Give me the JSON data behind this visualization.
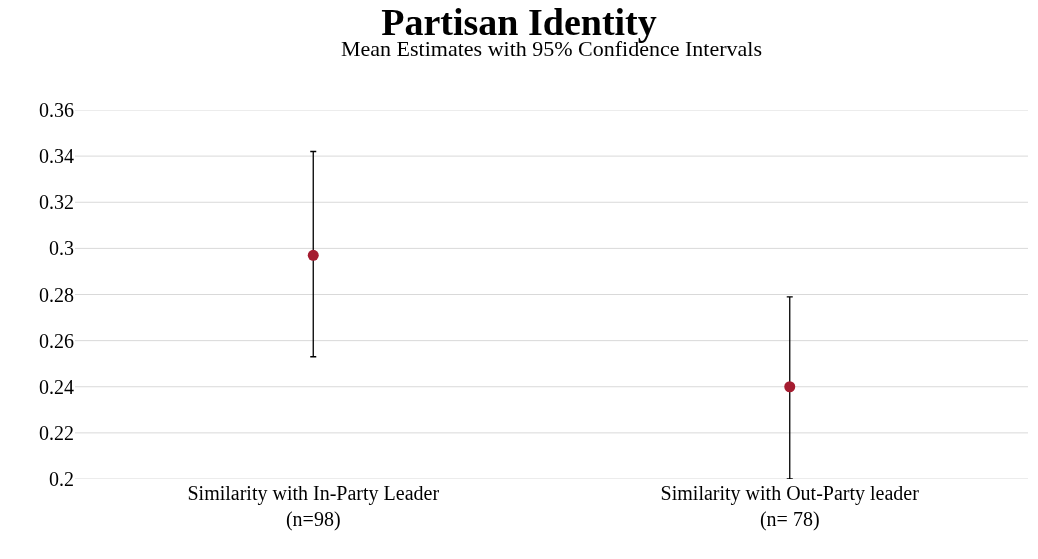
{
  "chart_data": {
    "type": "scatter",
    "title": "Partisan Identity",
    "subtitle": "Mean Estimates with 95% Confidence Intervals",
    "categories": [
      "Similarity with In-Party Leader\n(n=98)",
      "Similarity with Out-Party leader\n(n= 78)"
    ],
    "series": [
      {
        "color": "#a51c30",
        "values": [
          0.297,
          0.24
        ],
        "errors": [
          [
            0.253,
            0.342
          ],
          [
            0.2,
            0.279
          ]
        ]
      }
    ],
    "ylim": [
      0.2,
      0.36
    ],
    "yticks": [
      0.2,
      0.22,
      0.24,
      0.26,
      0.28,
      0.3,
      0.32,
      0.34,
      0.36
    ],
    "grid": "y",
    "marker": "circle"
  }
}
